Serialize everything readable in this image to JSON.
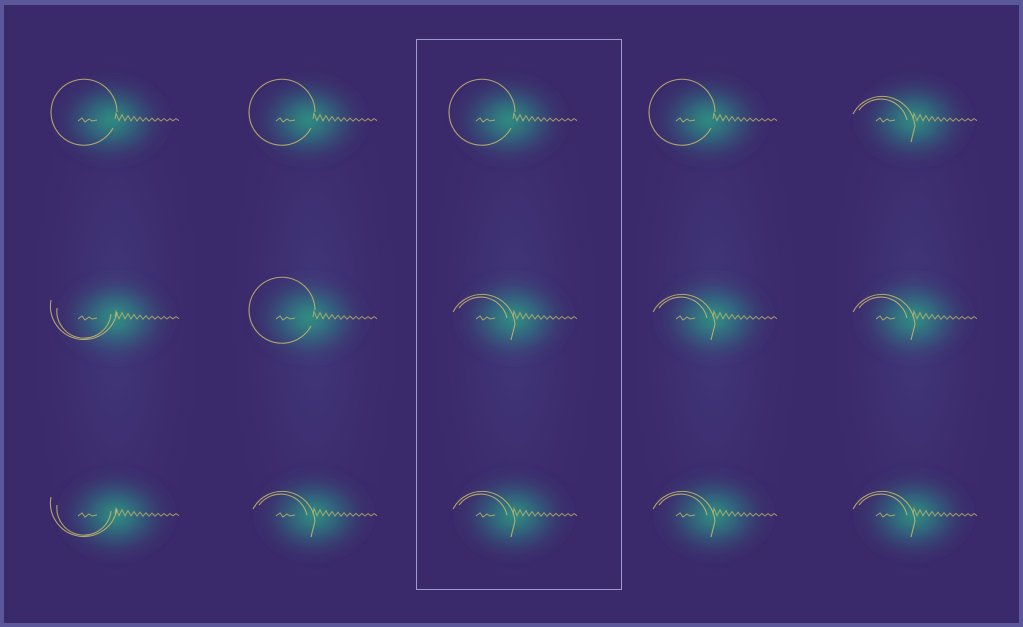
{
  "colors": {
    "background": "#3b2a6b",
    "frame": "#5a589a",
    "glow_core": "#2ea383",
    "glow_mid": "#2a7f86",
    "stroke": "#c9b96a",
    "selection": "#9d9ad0"
  },
  "grid": {
    "rows": 3,
    "columns": 5,
    "selected_column": 3
  },
  "cells": [
    {
      "row": 1,
      "col": 1,
      "shape": "full-circle"
    },
    {
      "row": 1,
      "col": 2,
      "shape": "full-circle"
    },
    {
      "row": 1,
      "col": 3,
      "shape": "full-circle"
    },
    {
      "row": 1,
      "col": 4,
      "shape": "full-circle"
    },
    {
      "row": 1,
      "col": 5,
      "shape": "upper-arc"
    },
    {
      "row": 2,
      "col": 1,
      "shape": "lower-arc"
    },
    {
      "row": 2,
      "col": 2,
      "shape": "full-circle"
    },
    {
      "row": 2,
      "col": 3,
      "shape": "upper-arc"
    },
    {
      "row": 2,
      "col": 4,
      "shape": "upper-arc"
    },
    {
      "row": 2,
      "col": 5,
      "shape": "upper-arc"
    },
    {
      "row": 3,
      "col": 1,
      "shape": "lower-arc"
    },
    {
      "row": 3,
      "col": 2,
      "shape": "upper-arc"
    },
    {
      "row": 3,
      "col": 3,
      "shape": "upper-arc"
    },
    {
      "row": 3,
      "col": 4,
      "shape": "upper-arc"
    },
    {
      "row": 3,
      "col": 5,
      "shape": "upper-arc"
    }
  ]
}
